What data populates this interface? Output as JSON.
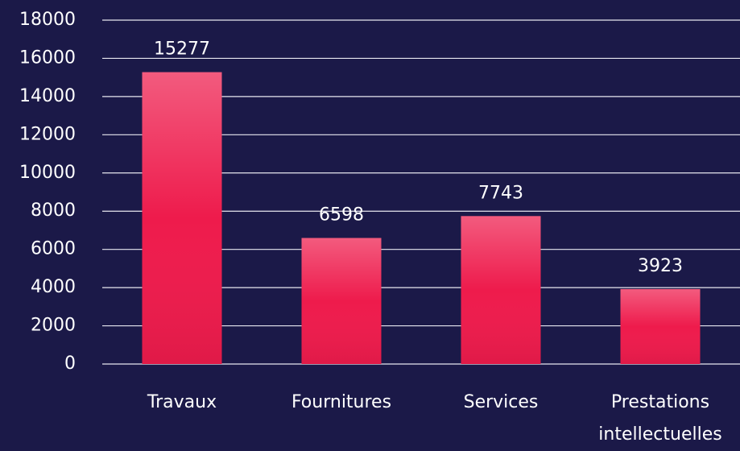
{
  "chart_data": {
    "type": "bar",
    "categories": [
      "Travaux",
      "Fournitures",
      "Services",
      "Prestations intellectuelles"
    ],
    "values": [
      15277,
      6598,
      7743,
      3923
    ],
    "color": "#ee1b4c",
    "ylim": [
      0,
      18000
    ],
    "yticks": [
      0,
      2000,
      4000,
      6000,
      8000,
      10000,
      12000,
      14000,
      16000,
      18000
    ],
    "grid": true
  }
}
